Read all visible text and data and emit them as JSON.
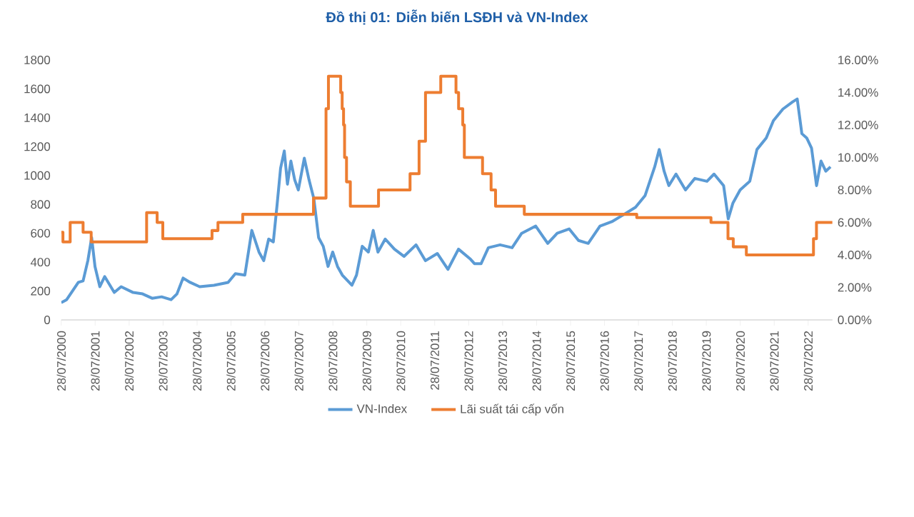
{
  "chart_data": {
    "type": "line",
    "title": "Đồ thị 01: Diễn biến LSĐH và VN-Index",
    "xlim": [
      "2000-07-28",
      "2023-04-15"
    ],
    "xticks": [
      {
        "value": "2000-07-28",
        "label": "28/07/2000"
      },
      {
        "value": "2001-07-28",
        "label": "28/07/2001"
      },
      {
        "value": "2002-07-28",
        "label": "28/07/2002"
      },
      {
        "value": "2003-07-28",
        "label": "28/07/2003"
      },
      {
        "value": "2004-07-28",
        "label": "28/07/2004"
      },
      {
        "value": "2005-07-28",
        "label": "28/07/2005"
      },
      {
        "value": "2006-07-28",
        "label": "28/07/2006"
      },
      {
        "value": "2007-07-28",
        "label": "28/07/2007"
      },
      {
        "value": "2008-07-28",
        "label": "28/07/2008"
      },
      {
        "value": "2009-07-28",
        "label": "28/07/2009"
      },
      {
        "value": "2010-07-28",
        "label": "28/07/2010"
      },
      {
        "value": "2011-07-28",
        "label": "28/07/2011"
      },
      {
        "value": "2012-07-28",
        "label": "28/07/2012"
      },
      {
        "value": "2013-07-28",
        "label": "28/07/2013"
      },
      {
        "value": "2014-07-28",
        "label": "28/07/2014"
      },
      {
        "value": "2015-07-28",
        "label": "28/07/2015"
      },
      {
        "value": "2016-07-28",
        "label": "28/07/2016"
      },
      {
        "value": "2017-07-28",
        "label": "28/07/2017"
      },
      {
        "value": "2018-07-28",
        "label": "28/07/2018"
      },
      {
        "value": "2019-07-28",
        "label": "28/07/2019"
      },
      {
        "value": "2020-07-28",
        "label": "28/07/2020"
      },
      {
        "value": "2021-07-28",
        "label": "28/07/2021"
      },
      {
        "value": "2022-07-28",
        "label": "28/07/2022"
      }
    ],
    "ylim": [
      0,
      1800
    ],
    "yticks": [
      0,
      200,
      400,
      600,
      800,
      1000,
      1200,
      1400,
      1600,
      1800
    ],
    "y2lim": [
      0,
      16
    ],
    "y2ticks": [
      {
        "value": 0,
        "label": "0.00%"
      },
      {
        "value": 2,
        "label": "2.00%"
      },
      {
        "value": 4,
        "label": "4.00%"
      },
      {
        "value": 6,
        "label": "6.00%"
      },
      {
        "value": 8,
        "label": "8.00%"
      },
      {
        "value": 10,
        "label": "10.00%"
      },
      {
        "value": 12,
        "label": "12.00%"
      },
      {
        "value": 14,
        "label": "14.00%"
      },
      {
        "value": 16,
        "label": "16.00%"
      }
    ],
    "legend": "bottom",
    "series": [
      {
        "name": "VN-Index",
        "type": "line",
        "color": "#5b9bd5",
        "x": [
          "2000-07-28",
          "2000-09-24",
          "2001-01-28",
          "2001-03-20",
          "2001-05-10",
          "2001-06-20",
          "2001-07-26",
          "2001-09-16",
          "2001-11-07",
          "2002-02-18",
          "2002-05-03",
          "2002-09-09",
          "2002-12-20",
          "2003-04-01",
          "2003-07-12",
          "2003-10-22",
          "2003-12-24",
          "2004-02-28",
          "2004-05-14",
          "2004-08-25",
          "2005-01-26",
          "2005-06-27",
          "2005-09-13",
          "2005-12-24",
          "2006-03-09",
          "2006-05-25",
          "2006-07-15",
          "2006-09-06",
          "2006-10-26",
          "2006-12-06",
          "2007-01-12",
          "2007-02-21",
          "2007-03-27",
          "2007-05-03",
          "2007-06-13",
          "2007-07-22",
          "2007-09-24",
          "2007-11-14",
          "2008-01-05",
          "2008-02-25",
          "2008-04-15",
          "2008-06-06",
          "2008-07-26",
          "2008-09-16",
          "2008-11-07",
          "2009-02-18",
          "2009-04-08",
          "2009-06-09",
          "2009-08-14",
          "2009-10-05",
          "2009-11-25",
          "2010-02-11",
          "2010-05-21",
          "2010-09-02",
          "2011-01-08",
          "2011-04-19",
          "2011-08-25",
          "2011-12-17",
          "2012-04-09",
          "2012-08-17",
          "2012-09-28",
          "2012-12-09",
          "2013-02-25",
          "2013-07-01",
          "2013-11-07",
          "2014-02-18",
          "2014-07-19",
          "2014-11-25",
          "2015-03-07",
          "2015-07-13",
          "2015-10-22",
          "2016-02-03",
          "2016-06-09",
          "2016-10-15",
          "2017-02-21",
          "2017-06-27",
          "2017-10-07",
          "2018-01-19",
          "2018-03-09",
          "2018-04-30",
          "2018-06-20",
          "2018-09-05",
          "2018-12-16",
          "2019-03-27",
          "2019-08-04",
          "2019-10-19",
          "2020-01-30",
          "2020-03-20",
          "2020-05-10",
          "2020-07-26",
          "2020-11-07",
          "2021-01-23",
          "2021-05-03",
          "2021-07-19",
          "2021-10-29",
          "2022-02-11",
          "2022-04-01",
          "2022-05-21",
          "2022-07-12",
          "2022-09-02",
          "2022-10-26",
          "2022-12-13",
          "2023-02-02",
          "2023-03-25"
        ],
        "values": [
          120,
          140,
          260,
          270,
          410,
          570,
          370,
          230,
          300,
          190,
          230,
          190,
          180,
          150,
          160,
          140,
          180,
          290,
          260,
          230,
          240,
          260,
          320,
          310,
          620,
          470,
          410,
          560,
          540,
          800,
          1050,
          1170,
          940,
          1100,
          970,
          900,
          1120,
          970,
          840,
          570,
          510,
          370,
          470,
          370,
          310,
          240,
          310,
          510,
          470,
          620,
          470,
          560,
          490,
          440,
          520,
          410,
          460,
          350,
          490,
          420,
          390,
          390,
          500,
          520,
          500,
          600,
          650,
          530,
          600,
          630,
          550,
          530,
          650,
          680,
          730,
          780,
          860,
          1060,
          1180,
          1030,
          930,
          1010,
          900,
          980,
          960,
          1010,
          930,
          700,
          810,
          900,
          960,
          1180,
          1260,
          1380,
          1460,
          1510,
          1530,
          1290,
          1260,
          1190,
          930,
          1100,
          1030,
          1060
        ]
      },
      {
        "name": "Lãi suất tái cấp vốn",
        "type": "step",
        "axis": "y2",
        "color": "#ed7d31",
        "x": [
          "2000-07-28",
          "2000-08-15",
          "2000-11-01",
          "2001-03-20",
          "2001-06-15",
          "2003-02-01",
          "2003-05-25",
          "2003-07-25",
          "2005-01-05",
          "2005-03-10",
          "2005-12-01",
          "2008-01-01",
          "2008-05-15",
          "2008-06-10",
          "2008-10-20",
          "2008-11-05",
          "2008-11-20",
          "2008-12-01",
          "2008-12-22",
          "2009-02-01",
          "2009-12-01",
          "2010-11-05",
          "2011-02-10",
          "2011-04-20",
          "2011-10-01",
          "2012-03-13",
          "2012-04-10",
          "2012-05-25",
          "2012-06-11",
          "2012-12-24",
          "2013-03-26",
          "2013-05-13",
          "2014-03-18",
          "2017-07-10",
          "2019-09-16",
          "2020-03-17",
          "2020-05-13",
          "2020-10-01",
          "2022-09-23",
          "2022-10-25",
          "2023-04-15"
        ],
        "values": [
          5.4,
          4.8,
          6.0,
          5.4,
          4.8,
          6.6,
          6.0,
          5.0,
          5.5,
          6.0,
          6.5,
          7.5,
          13.0,
          15.0,
          14.0,
          13.0,
          12.0,
          10.0,
          8.5,
          7.0,
          8.0,
          9.0,
          11.0,
          14.0,
          15.0,
          14.0,
          13.0,
          12.0,
          10.0,
          9.0,
          8.0,
          7.0,
          6.5,
          6.3,
          6.0,
          5.0,
          4.5,
          4.0,
          5.0,
          6.0,
          6.0
        ]
      }
    ]
  }
}
